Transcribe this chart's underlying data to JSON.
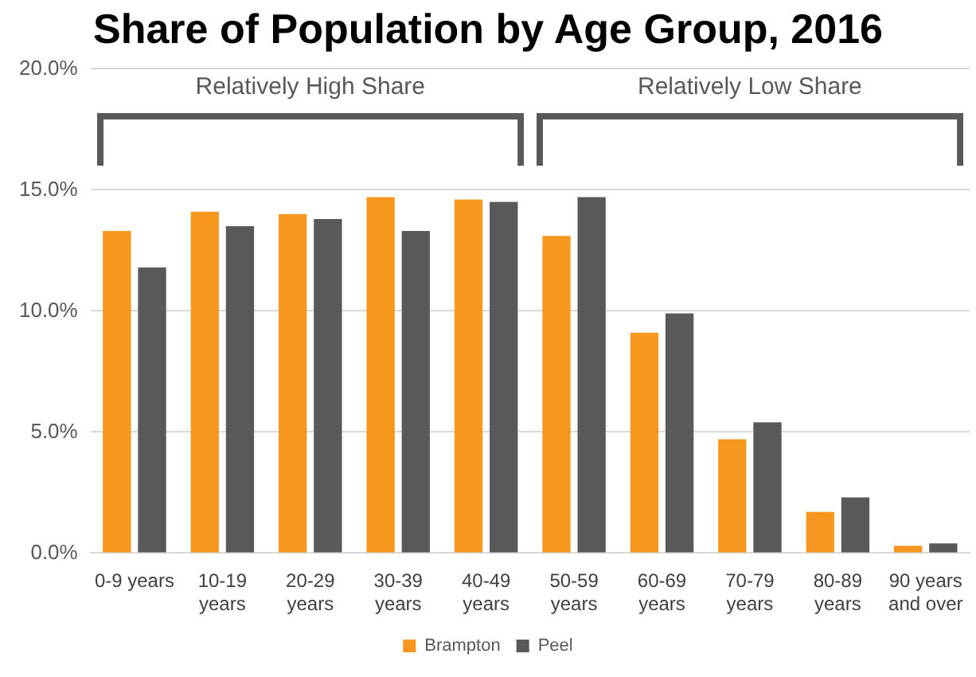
{
  "chart_data": {
    "type": "bar",
    "title": "Share of Population by Age Group, 2016",
    "categories": [
      "0-9 years",
      "10-19 years",
      "20-29 years",
      "30-39 years",
      "40-49 years",
      "50-59 years",
      "60-69 years",
      "70-79 years",
      "80-89 years",
      "90 years and over"
    ],
    "series": [
      {
        "name": "Brampton",
        "color": "#f7971e",
        "values": [
          13.3,
          14.1,
          14.0,
          14.7,
          14.6,
          13.1,
          9.1,
          4.7,
          1.7,
          0.3
        ]
      },
      {
        "name": "Peel",
        "color": "#595959",
        "values": [
          11.8,
          13.5,
          13.8,
          13.3,
          14.5,
          14.7,
          9.9,
          5.4,
          2.3,
          0.4
        ]
      }
    ],
    "ylim": [
      0,
      20
    ],
    "yticks": [
      {
        "value": 0,
        "label": "0.0%"
      },
      {
        "value": 5,
        "label": "5.0%"
      },
      {
        "value": 10,
        "label": "10.0%"
      },
      {
        "value": 15,
        "label": "15.0%"
      },
      {
        "value": 20,
        "label": "20.0%"
      }
    ],
    "grid": "y",
    "legend": "bottom",
    "annotations": [
      "Relatively High Share",
      "Relatively Low Share"
    ]
  }
}
